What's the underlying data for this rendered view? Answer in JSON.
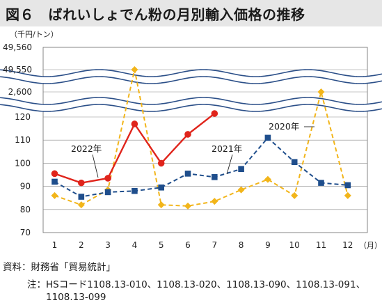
{
  "title": "図６　ばれいしょでん粉の月別輸入価格の推移",
  "unit": "（千円/トン）",
  "month_unit": "（月）",
  "source": "資料：財務省「貿易統計」",
  "note": {
    "label": "注：",
    "line1": "HSコード1108.13-010、1108.13-020、1108.13-090、1108.13-091、",
    "line2": "1108.13-099"
  },
  "chart_data": {
    "type": "line",
    "categories": [
      "1",
      "2",
      "3",
      "4",
      "5",
      "6",
      "7",
      "8",
      "9",
      "10",
      "11",
      "12"
    ],
    "y_ticks": [
      "70",
      "80",
      "90",
      "100",
      "110",
      "120"
    ],
    "y_break_ticks": [
      "2,600",
      "49,550",
      "49,560"
    ],
    "series": [
      {
        "name": "2022年",
        "color": "#e0241b",
        "marker": "circle",
        "style": "solid",
        "values": [
          95.5,
          91.5,
          93.5,
          117,
          100,
          112.5,
          121.5,
          null,
          null,
          null,
          null,
          null
        ]
      },
      {
        "name": "2021年",
        "color": "#1f4e8c",
        "marker": "square",
        "style": "dashed",
        "values": [
          92,
          85.5,
          87.5,
          88,
          89.5,
          95.5,
          94,
          97.5,
          111,
          100.5,
          91.5,
          90.5
        ]
      },
      {
        "name": "2020年",
        "color": "#f2b51a",
        "marker": "diamond",
        "style": "dashed",
        "values": [
          86,
          82,
          88.5,
          49550,
          82,
          81.5,
          83.5,
          88.5,
          93,
          86,
          2600,
          86
        ]
      }
    ],
    "legend": "inline labels"
  },
  "colors": {
    "break_line": "#2b4f88",
    "title_bg": "#e6e6e6"
  }
}
